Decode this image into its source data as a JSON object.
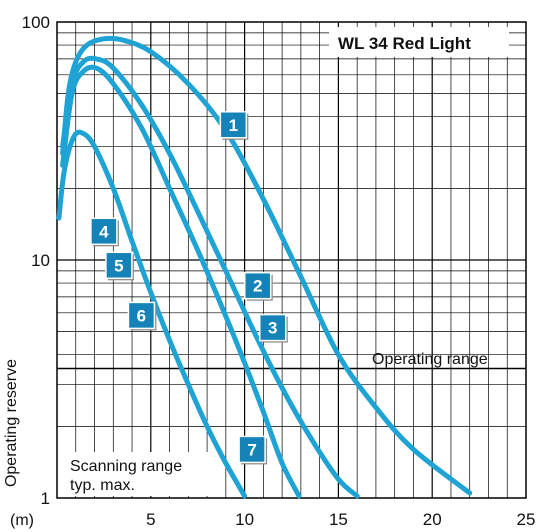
{
  "chart_data": {
    "type": "line",
    "title": "WL 34 Red Light",
    "xlabel": "(m)",
    "ylabel": "Operating reserve",
    "xlim": [
      0,
      25
    ],
    "ylim": [
      1,
      100
    ],
    "y_scale": "log",
    "x_ticks": [
      {
        "value": 5,
        "label": "5"
      },
      {
        "value": 10,
        "label": "10"
      },
      {
        "value": 15,
        "label": "15"
      },
      {
        "value": 20,
        "label": "20"
      },
      {
        "value": 25,
        "label": "25"
      }
    ],
    "y_ticks": [
      {
        "value": 1,
        "label": "1"
      },
      {
        "value": 10,
        "label": "10"
      },
      {
        "value": 100,
        "label": "100"
      }
    ],
    "grid": true,
    "line_color": "#1ea3d4",
    "badge_color": "#1583b8",
    "threshold": {
      "value": 3.5,
      "label": "Operating range"
    },
    "annotation": [
      "Scanning range",
      "typ. max."
    ],
    "series": [
      {
        "name": "1",
        "x": [
          0.3,
          0.6,
          1.0,
          1.6,
          2.5,
          3.5,
          5.0,
          7.0,
          9.0,
          11.0,
          13.0,
          15.0,
          17.0,
          19.0,
          22.0
        ],
        "y": [
          28,
          50,
          68,
          80,
          85,
          84,
          75,
          55,
          35,
          18,
          8.5,
          4.0,
          2.4,
          1.6,
          1.05
        ]
      },
      {
        "name": "2",
        "x": [
          0.3,
          0.8,
          1.4,
          2.1,
          3.0,
          4.5,
          6.0,
          7.5,
          9.0,
          10.5,
          12.0,
          13.5,
          15.0,
          16.0
        ],
        "y": [
          30,
          55,
          68,
          70,
          64,
          45,
          28,
          16,
          9.0,
          5.0,
          2.9,
          1.8,
          1.2,
          1.02
        ]
      },
      {
        "name": "3",
        "x": [
          0.3,
          0.8,
          1.4,
          2.1,
          3.0,
          4.5,
          6.0,
          7.5,
          9.0,
          10.0,
          11.0,
          12.0,
          12.9
        ],
        "y": [
          25,
          50,
          62,
          64,
          55,
          36,
          20,
          11,
          5.8,
          3.7,
          2.3,
          1.4,
          1.02
        ]
      },
      {
        "name": "4/5/6/7",
        "x": [
          0.1,
          0.4,
          0.9,
          1.4,
          2.0,
          3.0,
          4.0,
          5.0,
          6.0,
          7.0,
          8.0,
          9.0,
          10.0
        ],
        "y": [
          15,
          24,
          33,
          34,
          30,
          20,
          12,
          7.3,
          4.6,
          3.0,
          2.0,
          1.4,
          1.02
        ]
      }
    ],
    "curve_labels": [
      {
        "label": "1",
        "x": 9.4,
        "y": 37
      },
      {
        "label": "2",
        "x": 10.7,
        "y": 7.8
      },
      {
        "label": "3",
        "x": 11.5,
        "y": 5.2
      },
      {
        "label": "4",
        "x": 2.5,
        "y": 13.2
      },
      {
        "label": "5",
        "x": 3.3,
        "y": 9.5
      },
      {
        "label": "6",
        "x": 4.5,
        "y": 5.85
      },
      {
        "label": "7",
        "x": 10.4,
        "y": 1.6
      }
    ]
  }
}
